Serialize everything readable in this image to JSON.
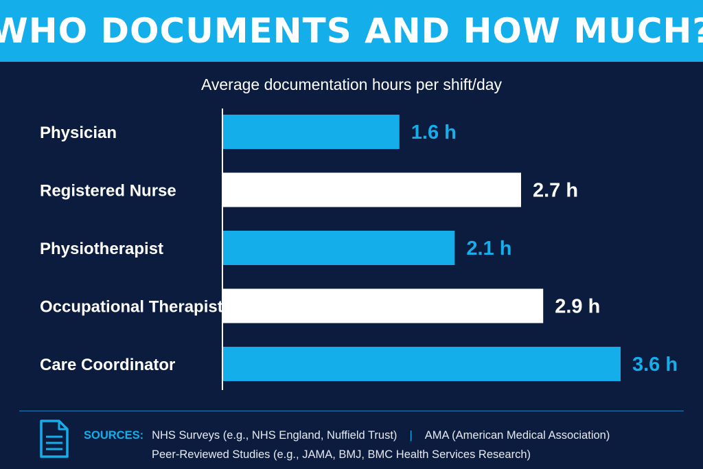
{
  "header": {
    "title": "WHO DOCUMENTS AND HOW MUCH?"
  },
  "subtitle": "Average documentation hours per shift/day",
  "colors": {
    "accent": "#14aeea",
    "background": "#0c1c3f",
    "bar_alt": "#ffffff"
  },
  "chart_data": {
    "type": "bar",
    "orientation": "horizontal",
    "title": "WHO DOCUMENTS AND HOW MUCH?",
    "subtitle": "Average documentation hours per shift/day",
    "categories": [
      "Physician",
      "Registered Nurse",
      "Physiotherapist",
      "Occupational Therapist",
      "Care Coordinator"
    ],
    "values": [
      1.6,
      2.7,
      2.1,
      2.9,
      3.6
    ],
    "value_labels": [
      "1.6 h",
      "2.7 h",
      "2.1 h",
      "2.9 h",
      "3.6 h"
    ],
    "bar_colors": [
      "#14aeea",
      "#ffffff",
      "#14aeea",
      "#ffffff",
      "#14aeea"
    ],
    "xlim": [
      0,
      3.6
    ],
    "grid": false,
    "xlabel": "",
    "ylabel": ""
  },
  "footer": {
    "icon": "document-icon",
    "sources_label": "SOURCES:",
    "source_1": "NHS Surveys (e.g., NHS England, Nuffield Trust)",
    "separator": "|",
    "source_2": "AMA (American Medical Association)",
    "source_3": "Peer-Reviewed Studies (e.g., JAMA, BMJ, BMC Health Services Research)"
  }
}
